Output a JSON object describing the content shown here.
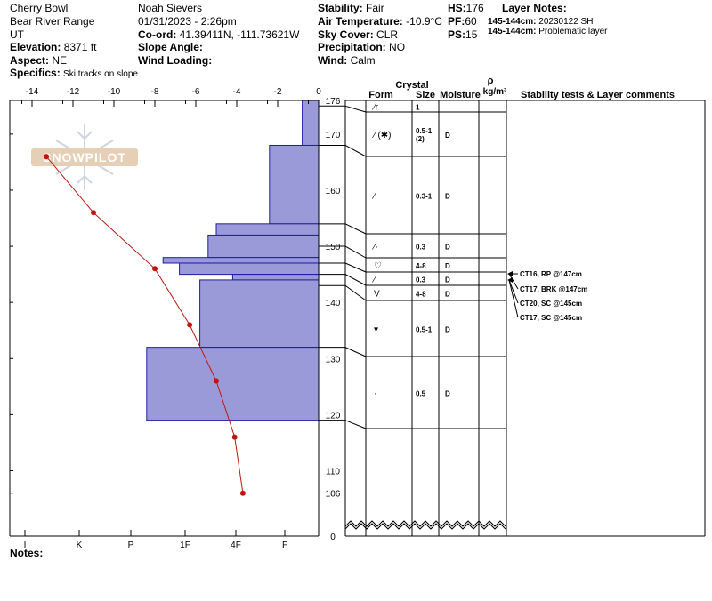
{
  "header": {
    "location": "Cherry Bowl",
    "range": "Bear River Range",
    "state": "UT",
    "elevation_label": "Elevation:",
    "elevation_value": "8371 ft",
    "aspect_label": "Aspect:",
    "aspect_value": "NE",
    "specifics_label": "Specifics:",
    "specifics_value": "Ski tracks on slope",
    "observer": "Noah Sievers",
    "datetime": "01/31/2023 - 2:26pm",
    "coord_label": "Co-ord:",
    "coord_value": "41.39411N, -111.73621W",
    "slope_label": "Slope Angle:",
    "slope_value": "",
    "wind_loading_label": "Wind Loading:",
    "wind_loading_value": "",
    "stability_label": "Stability:",
    "stability_value": "Fair",
    "airtemp_label": "Air Temperature:",
    "airtemp_value": "-10.9°C",
    "sky_label": "Sky Cover:",
    "sky_value": "CLR",
    "precip_label": "Precipitation:",
    "precip_value": "NO",
    "wind_label": "Wind:",
    "wind_value": "Calm",
    "hs_label": "HS:",
    "hs_value": "176",
    "pf_label": "PF:",
    "pf_value": "60",
    "ps_label": "PS:",
    "ps_value": "15",
    "layer_notes_title": "Layer Notes:",
    "layer_notes": [
      {
        "range": "145-144cm:",
        "text": "20230122 SH"
      },
      {
        "range": "145-144cm:",
        "text": "Problematic layer"
      }
    ]
  },
  "notes_label": "Notes:",
  "watermark": "SNOWPILOT",
  "table_headers": {
    "crystal": "Crystal",
    "form": "Form",
    "size": "Size",
    "moisture": "Moisture",
    "rho": "ρ",
    "density_unit": "kg/m³",
    "comments": "Stability tests & Layer comments"
  },
  "chart_data": {
    "type": "snow-profile",
    "temperature_axis": {
      "ticks": [
        "-14",
        "-12",
        "-10",
        "-8",
        "-6",
        "-4",
        "-2",
        "0"
      ],
      "range": [
        -15,
        0
      ]
    },
    "hardness_axis": {
      "ticks": [
        "I",
        "K",
        "P",
        "1F",
        "4F",
        "F"
      ]
    },
    "height_axis": {
      "ticks": [
        "0",
        "106",
        "110",
        "120",
        "130",
        "140",
        "150",
        "160",
        "170",
        "176"
      ],
      "range": [
        0,
        176
      ],
      "break": [
        0,
        100
      ]
    },
    "temperature_profile": [
      {
        "height": 166,
        "temp": -13.3
      },
      {
        "height": 156,
        "temp": -11
      },
      {
        "height": 146,
        "temp": -8
      },
      {
        "height": 136,
        "temp": -6.3
      },
      {
        "height": 126,
        "temp": -5
      },
      {
        "height": 116,
        "temp": -4.1
      },
      {
        "height": 106,
        "temp": -3.7
      }
    ],
    "hardness_profile": [
      {
        "top": 176,
        "bottom": 168,
        "temp_extent": -0.8
      },
      {
        "top": 168,
        "bottom": 154,
        "temp_extent": -2.4
      },
      {
        "top": 154,
        "bottom": 152,
        "temp_extent": -5
      },
      {
        "top": 152,
        "bottom": 148,
        "temp_extent": -5.4
      },
      {
        "top": 148,
        "bottom": 147,
        "temp_extent": -7.6
      },
      {
        "top": 147,
        "bottom": 145,
        "temp_extent": -6.8
      },
      {
        "top": 145,
        "bottom": 144,
        "temp_extent": -4.2
      },
      {
        "top": 144,
        "bottom": 132,
        "temp_extent": -5.8
      },
      {
        "top": 132,
        "bottom": 119,
        "temp_extent": -8.4
      }
    ],
    "layers": [
      {
        "top": 176,
        "bottom": 175,
        "form": "⁄r",
        "size": "1",
        "moisture": ""
      },
      {
        "top": 175,
        "bottom": 168,
        "form": "⁄ (✱)",
        "size": "0.5-1\n(2)",
        "moisture": "D"
      },
      {
        "top": 168,
        "bottom": 154,
        "form": "⁄",
        "size": "0.3-1",
        "moisture": "D"
      },
      {
        "top": 154,
        "bottom": 150,
        "form": "⁄·",
        "size": "0.3",
        "moisture": "D"
      },
      {
        "top": 150,
        "bottom": 147,
        "form": "♡",
        "size": "4-8",
        "moisture": "D"
      },
      {
        "top": 147,
        "bottom": 145,
        "form": "⁄",
        "size": "0.3",
        "moisture": "D"
      },
      {
        "top": 145,
        "bottom": 143,
        "form": "V",
        "size": "4-8",
        "moisture": "D"
      },
      {
        "top": 143,
        "bottom": 132,
        "form": "▾",
        "size": "0.5-1",
        "moisture": "D"
      },
      {
        "top": 132,
        "bottom": 119,
        "form": "·",
        "size": "0.5",
        "moisture": "D"
      },
      {
        "top": 119,
        "bottom": 0,
        "form": "",
        "size": "",
        "moisture": ""
      }
    ],
    "stability_tests": [
      {
        "label": "CT16, RP @147cm",
        "height": 147
      },
      {
        "label": "CT17, BRK @147cm",
        "height": 147
      },
      {
        "label": "CT20, SC @145cm",
        "height": 145
      },
      {
        "label": "CT17, SC @145cm",
        "height": 145
      }
    ]
  },
  "colors": {
    "hardness_fill": "#9a9ad8",
    "hardness_stroke": "#1c1ca8",
    "temperature": "#c0150f",
    "watermark": "#c8a583"
  }
}
